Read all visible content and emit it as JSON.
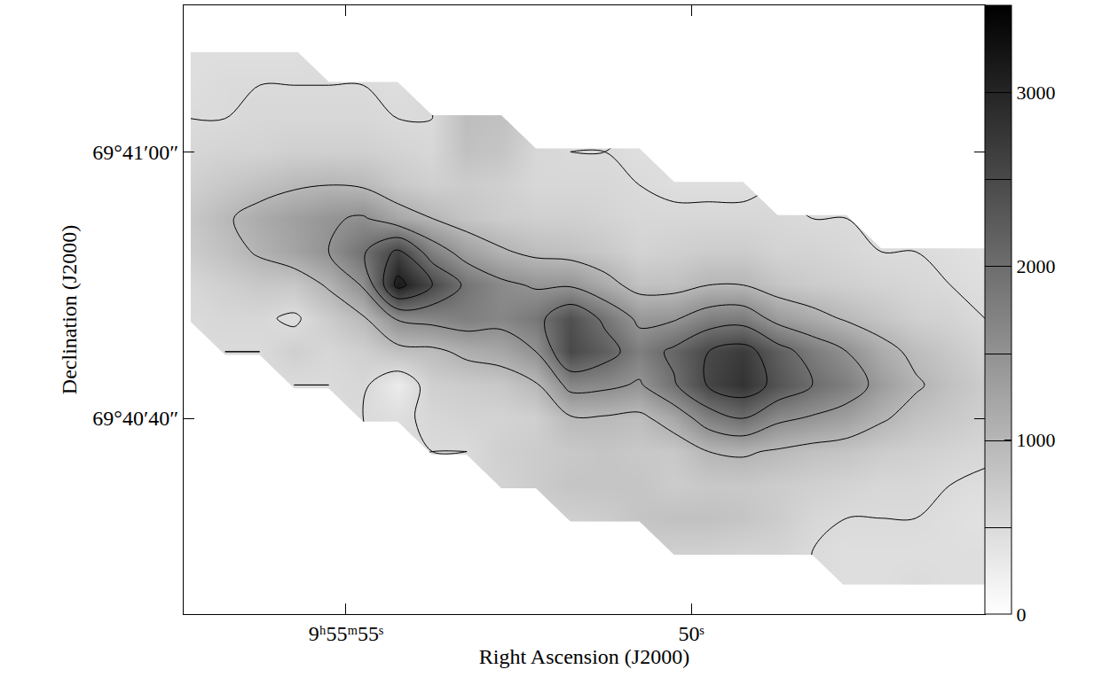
{
  "chart_data": {
    "type": "contour",
    "x_label": "Right Ascension (J2000)",
    "y_label": "Declination (J2000)",
    "x": [
      57.25,
      56.75,
      56.25,
      55.75,
      55.25,
      54.75,
      54.25,
      53.75,
      53.25,
      52.75,
      52.25,
      51.75,
      51.25,
      50.75,
      50.25,
      49.75,
      49.25,
      48.75,
      48.25,
      47.75,
      47.25,
      46.75,
      46.25,
      45.75
    ],
    "y": [
      27.5,
      30,
      32.5,
      35,
      37.5,
      40,
      42.5,
      45,
      47.5,
      50,
      52.5,
      55,
      57.5,
      60,
      62.5,
      65,
      67.5
    ],
    "z": [
      [
        null,
        null,
        null,
        null,
        null,
        null,
        null,
        null,
        null,
        null,
        null,
        null,
        null,
        null,
        null,
        null,
        null,
        null,
        null,
        450,
        450,
        500,
        450,
        450
      ],
      [
        null,
        null,
        null,
        null,
        null,
        null,
        null,
        null,
        null,
        null,
        null,
        null,
        null,
        null,
        650,
        650,
        600,
        600,
        500,
        450,
        450,
        450,
        450,
        450
      ],
      [
        null,
        null,
        null,
        null,
        null,
        null,
        null,
        null,
        null,
        null,
        null,
        650,
        700,
        800,
        850,
        850,
        800,
        700,
        550,
        500,
        500,
        500,
        450,
        400
      ],
      [
        null,
        null,
        null,
        null,
        null,
        null,
        null,
        null,
        null,
        600,
        700,
        800,
        800,
        800,
        700,
        750,
        750,
        700,
        650,
        600,
        550,
        550,
        500,
        450
      ],
      [
        null,
        null,
        null,
        null,
        null,
        null,
        null,
        500,
        500,
        650,
        700,
        750,
        800,
        750,
        750,
        1000,
        1050,
        950,
        850,
        800,
        700,
        650,
        600,
        550
      ],
      [
        null,
        null,
        null,
        null,
        null,
        500,
        450,
        550,
        600,
        600,
        650,
        950,
        950,
        900,
        1200,
        1750,
        2000,
        1600,
        1450,
        1300,
        1050,
        850,
        750,
        650
      ],
      [
        null,
        null,
        null,
        500,
        500,
        550,
        250,
        650,
        700,
        750,
        950,
        1650,
        1600,
        1450,
        1950,
        2550,
        2800,
        2350,
        2000,
        1750,
        1350,
        1050,
        850,
        700
      ],
      [
        null,
        500,
        500,
        650,
        550,
        650,
        850,
        900,
        1100,
        1200,
        1500,
        2500,
        2200,
        1750,
        2100,
        2500,
        2700,
        2200,
        1800,
        1500,
        1150,
        900,
        750,
        600
      ],
      [
        500,
        550,
        550,
        450,
        700,
        950,
        1550,
        1650,
        1750,
        1650,
        1850,
        2400,
        1900,
        1400,
        1450,
        1750,
        1800,
        1350,
        1150,
        950,
        800,
        650,
        600,
        500
      ],
      [
        550,
        650,
        750,
        750,
        1050,
        1550,
        3150,
        2500,
        1900,
        1600,
        1450,
        1450,
        1150,
        850,
        850,
        1000,
        1000,
        800,
        700,
        650,
        600,
        550,
        500,
        450
      ],
      [
        700,
        850,
        1050,
        1250,
        1500,
        1950,
        2600,
        1750,
        1300,
        1050,
        900,
        850,
        750,
        600,
        650,
        700,
        700,
        600,
        600,
        550,
        500,
        500,
        450,
        400
      ],
      [
        750,
        950,
        1150,
        1300,
        1450,
        1550,
        1200,
        1000,
        800,
        700,
        650,
        650,
        600,
        550,
        550,
        550,
        550,
        550,
        500,
        500,
        null,
        null,
        null,
        null
      ],
      [
        650,
        750,
        850,
        950,
        1000,
        950,
        750,
        650,
        700,
        650,
        550,
        550,
        550,
        500,
        450,
        450,
        450,
        null,
        null,
        null,
        null,
        null,
        null,
        null
      ],
      [
        550,
        600,
        600,
        650,
        650,
        650,
        600,
        550,
        850,
        800,
        550,
        500,
        500,
        450,
        null,
        null,
        null,
        null,
        null,
        null,
        null,
        null,
        null,
        null
      ],
      [
        500,
        500,
        550,
        550,
        550,
        550,
        500,
        500,
        900,
        850,
        null,
        null,
        null,
        null,
        null,
        null,
        null,
        null,
        null,
        null,
        null,
        null,
        null,
        null
      ],
      [
        450,
        500,
        500,
        500,
        500,
        500,
        450,
        null,
        null,
        null,
        null,
        null,
        null,
        null,
        null,
        null,
        null,
        null,
        null,
        null,
        null,
        null,
        null,
        null
      ],
      [
        450,
        450,
        450,
        450,
        null,
        null,
        null,
        null,
        null,
        null,
        null,
        null,
        null,
        null,
        null,
        null,
        null,
        null,
        null,
        null,
        null,
        null,
        null,
        null
      ]
    ],
    "xlim": [
      57.35,
      45.75
    ],
    "ylim": [
      25.3,
      71.0
    ],
    "xticks": [
      {
        "value": 55,
        "label": "9ʰ55ᵐ55ˢ"
      },
      {
        "value": 50,
        "label": "50ˢ"
      }
    ],
    "yticks": [
      {
        "value": 60,
        "label": "69°41′00″"
      },
      {
        "value": 40,
        "label": "69°40′40″"
      }
    ],
    "zlim": [
      0,
      3500
    ],
    "zticks": [
      0,
      1000,
      2000,
      3000
    ],
    "levels": [
      500,
      1000,
      1500,
      2000,
      2500,
      3000
    ],
    "grid": false
  }
}
